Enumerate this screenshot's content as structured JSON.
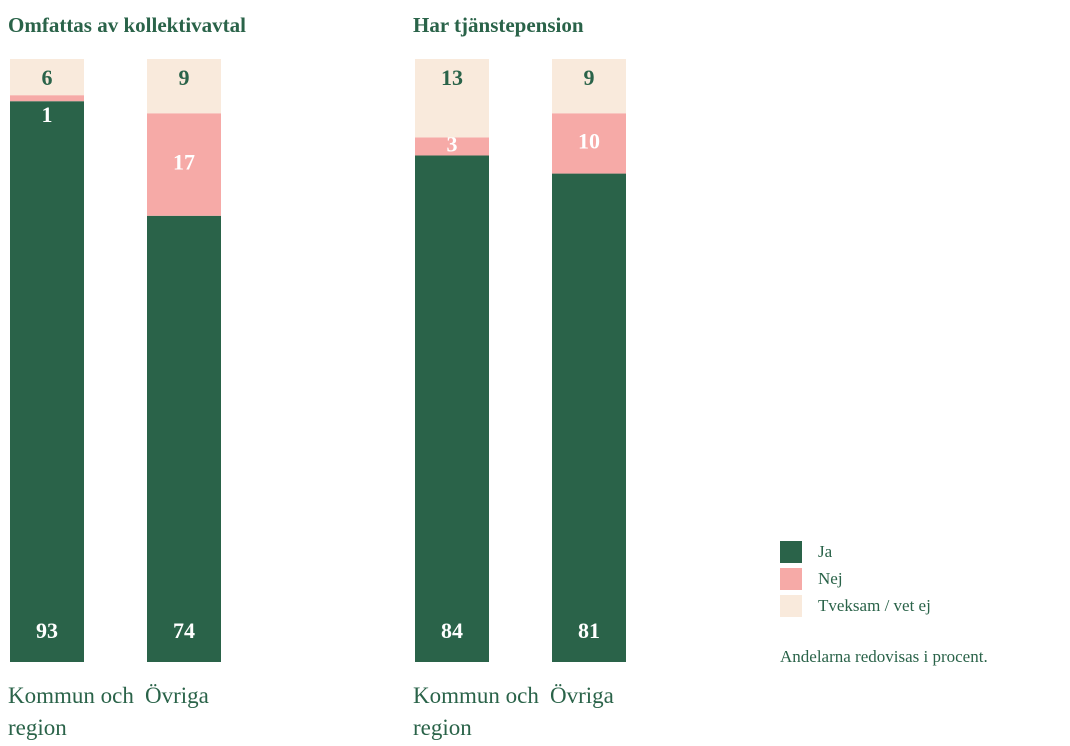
{
  "chart_data": [
    {
      "type": "stacked-bar",
      "title": "Omfattas av kollektivavtal",
      "categories": [
        "Kommun och region",
        "Övriga"
      ],
      "ylim": [
        0,
        100
      ],
      "series": [
        {
          "name": "Ja",
          "color": "#2a6349",
          "values": [
            93,
            74
          ]
        },
        {
          "name": "Nej",
          "color": "#f6aaa7",
          "values": [
            1,
            17
          ]
        },
        {
          "name": "Tveksam / vet ej",
          "color": "#f9eadc",
          "values": [
            6,
            9
          ]
        }
      ]
    },
    {
      "type": "stacked-bar",
      "title": "Har tjänstepension",
      "categories": [
        "Kommun och region",
        "Övriga"
      ],
      "ylim": [
        0,
        100
      ],
      "series": [
        {
          "name": "Ja",
          "color": "#2a6349",
          "values": [
            84,
            81
          ]
        },
        {
          "name": "Nej",
          "color": "#f6aaa7",
          "values": [
            3,
            10
          ]
        },
        {
          "name": "Tveksam / vet ej",
          "color": "#f9eadc",
          "values": [
            13,
            9
          ]
        }
      ]
    }
  ],
  "note": "Andelarna redovisas i procent."
}
